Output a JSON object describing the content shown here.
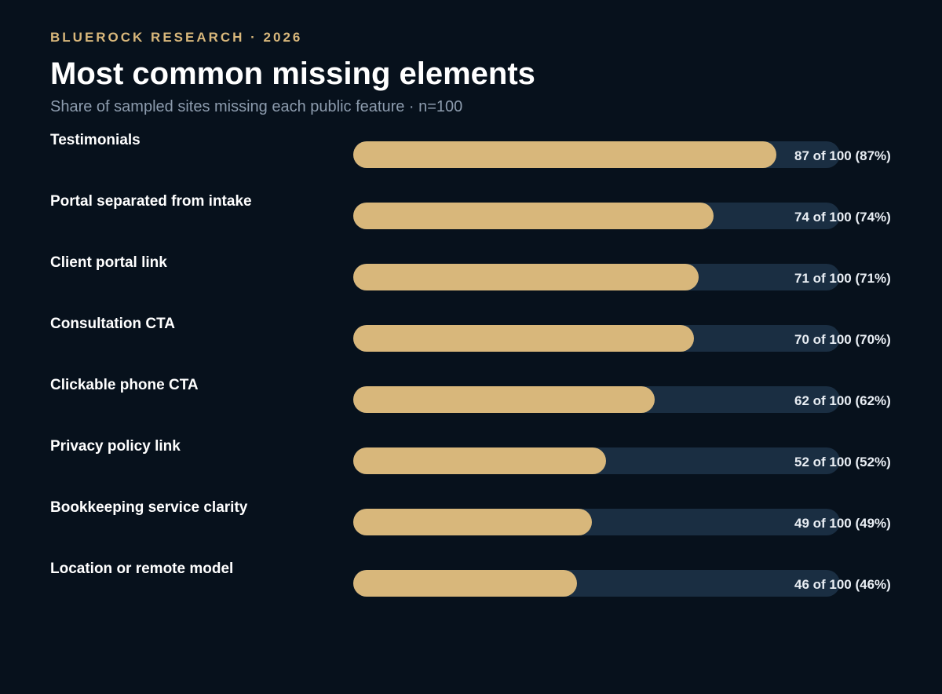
{
  "header": {
    "eyebrow": "BLUEROCK RESEARCH · 2026",
    "title": "Most common missing elements",
    "subtitle": "Share of sampled sites missing each public feature · n=100"
  },
  "colors": {
    "background": "#07111c",
    "accent": "#d8b77b",
    "track": "#1a2e42"
  },
  "chart_data": {
    "type": "bar",
    "orientation": "horizontal",
    "title": "Most common missing elements",
    "subtitle": "Share of sampled sites missing each public feature · n=100",
    "total": 100,
    "xlim": [
      0,
      100
    ],
    "grid": false,
    "categories": [
      "Testimonials",
      "Portal separated from intake",
      "Client portal link",
      "Consultation CTA",
      "Clickable phone CTA",
      "Privacy policy link",
      "Bookkeeping service clarity",
      "Location or remote model"
    ],
    "values": [
      87,
      74,
      71,
      70,
      62,
      52,
      49,
      46
    ],
    "value_labels": [
      "87 of 100 (87%)",
      "74 of 100 (74%)",
      "71 of 100 (71%)",
      "70 of 100 (70%)",
      "62 of 100 (62%)",
      "52 of 100 (52%)",
      "49 of 100 (49%)",
      "46 of 100 (46%)"
    ]
  }
}
